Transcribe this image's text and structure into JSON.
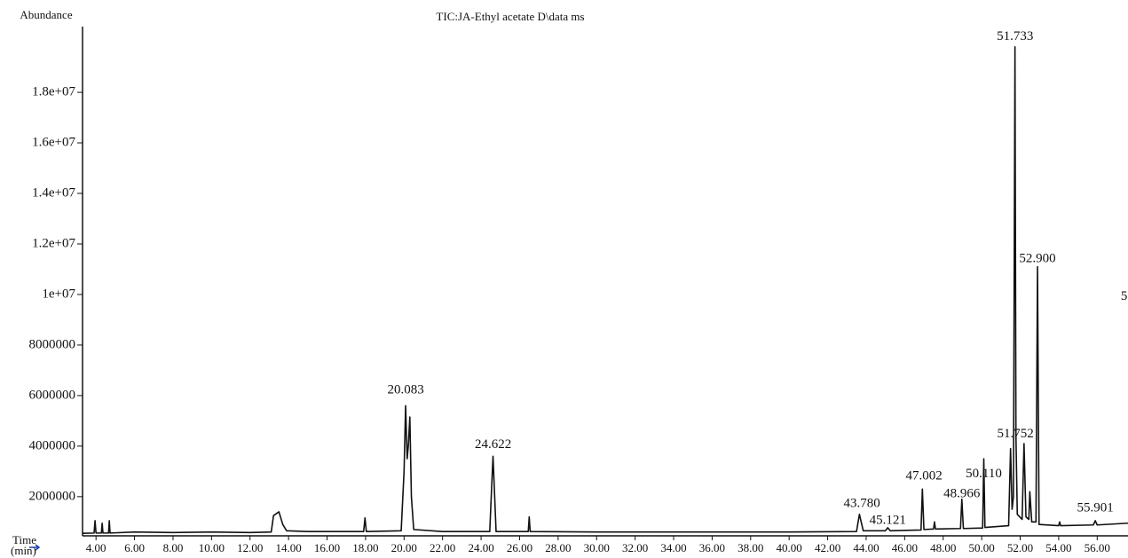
{
  "chart_data": {
    "type": "line",
    "title": "TIC:JA-Ethyl acetate D\\data ms",
    "y_label": "Abundance",
    "x_label": "Time",
    "x_label_unit": "(min)",
    "xlim": [
      3.3,
      57.6
    ],
    "ylim": [
      450000,
      20600000
    ],
    "xticks": [
      {
        "value": 4,
        "label": "4.00"
      },
      {
        "value": 6,
        "label": "6.00"
      },
      {
        "value": 8,
        "label": "8.00"
      },
      {
        "value": 10,
        "label": "10.00"
      },
      {
        "value": 12,
        "label": "12.00"
      },
      {
        "value": 14,
        "label": "14.00"
      },
      {
        "value": 16,
        "label": "16.00"
      },
      {
        "value": 18,
        "label": "18.00"
      },
      {
        "value": 20,
        "label": "20.00"
      },
      {
        "value": 22,
        "label": "22.00"
      },
      {
        "value": 24,
        "label": "24.00"
      },
      {
        "value": 26,
        "label": "26.00"
      },
      {
        "value": 28,
        "label": "28.00"
      },
      {
        "value": 30,
        "label": "30.00"
      },
      {
        "value": 32,
        "label": "32.00"
      },
      {
        "value": 34,
        "label": "34.00"
      },
      {
        "value": 36,
        "label": "36.00"
      },
      {
        "value": 38,
        "label": "38.00"
      },
      {
        "value": 40,
        "label": "40.00"
      },
      {
        "value": 42,
        "label": "42.00"
      },
      {
        "value": 44,
        "label": "44.00"
      },
      {
        "value": 46,
        "label": "46.00"
      },
      {
        "value": 48,
        "label": "48.00"
      },
      {
        "value": 50,
        "label": "50.00"
      },
      {
        "value": 52,
        "label": "52.00"
      },
      {
        "value": 54,
        "label": "54.00"
      },
      {
        "value": 56,
        "label": "56.00"
      }
    ],
    "yticks": [
      2000000,
      4000000,
      6000000,
      8000000,
      {
        "value": 10000000,
        "label": "1e+07"
      },
      {
        "value": 12000000,
        "label": "1.2e+07"
      },
      {
        "value": 14000000,
        "label": "1.4e+07"
      },
      {
        "value": 16000000,
        "label": "1.6e+07"
      },
      {
        "value": 18000000,
        "label": "1.8e+07"
      }
    ],
    "x": [
      3.3,
      3.9,
      3.95,
      4.0,
      4.28,
      4.32,
      4.36,
      4.65,
      4.69,
      4.73,
      6,
      8,
      10,
      12,
      13.1,
      13.22,
      13.5,
      13.7,
      13.9,
      15,
      17.9,
      17.97,
      18.04,
      19.85,
      20.0,
      20.08,
      20.16,
      20.22,
      20.3,
      20.38,
      20.5,
      22,
      24.45,
      24.55,
      24.62,
      24.69,
      24.78,
      26.45,
      26.5,
      26.55,
      30,
      35,
      40,
      43.5,
      43.65,
      43.85,
      45.0,
      45.12,
      45.25,
      46.85,
      46.92,
      47.0,
      47.5,
      47.55,
      47.6,
      48.9,
      48.97,
      49.05,
      50.05,
      50.11,
      50.17,
      51.4,
      51.5,
      51.58,
      51.65,
      51.73,
      51.78,
      51.85,
      52.1,
      52.2,
      52.3,
      52.45,
      52.5,
      52.6,
      52.82,
      52.9,
      52.98,
      54,
      54.05,
      54.1,
      55.8,
      55.9,
      56.0,
      57.6
    ],
    "series": [
      {
        "color": "#111111",
        "values": [
          550000,
          560000,
          1050000,
          560000,
          560000,
          950000,
          560000,
          560000,
          1050000,
          560000,
          600000,
          580000,
          600000,
          580000,
          600000,
          1250000,
          1400000,
          900000,
          650000,
          620000,
          620000,
          1160000,
          620000,
          650000,
          3000000,
          5600000,
          3500000,
          4000000,
          5150000,
          2000000,
          700000,
          620000,
          620000,
          2400000,
          3600000,
          2300000,
          620000,
          620000,
          1200000,
          620000,
          600000,
          600000,
          600000,
          620000,
          1300000,
          650000,
          650000,
          770000,
          650000,
          680000,
          2300000,
          700000,
          720000,
          1000000,
          720000,
          740000,
          1900000,
          740000,
          760000,
          3500000,
          780000,
          850000,
          3900000,
          1500000,
          2000000,
          19800000,
          4400000,
          1300000,
          1100000,
          4100000,
          1200000,
          1100000,
          2200000,
          1000000,
          1000000,
          11100000,
          900000,
          850000,
          1000000,
          850000,
          880000,
          1050000,
          880000,
          950000
        ]
      }
    ],
    "annotations": [
      {
        "x": 20.083,
        "y": 6200000,
        "label": "20.083"
      },
      {
        "x": 24.622,
        "y": 4040000,
        "label": "24.622"
      },
      {
        "x": 43.78,
        "y": 1720000,
        "label": "43.780"
      },
      {
        "x": 45.121,
        "y": 1050000,
        "label": "45.121"
      },
      {
        "x": 47.002,
        "y": 2800000,
        "label": "47.002"
      },
      {
        "x": 48.966,
        "y": 2100000,
        "label": "48.966"
      },
      {
        "x": 50.11,
        "y": 2880000,
        "label": "50.110"
      },
      {
        "x": 51.752,
        "y": 4460000,
        "label": "51.752"
      },
      {
        "x": 51.733,
        "y": 20200000,
        "label": "51.733"
      },
      {
        "x": 52.9,
        "y": 11400000,
        "label": "52.900"
      },
      {
        "x": 55.901,
        "y": 1540000,
        "label": "55.901"
      },
      {
        "x": 57.4,
        "y": 9900000,
        "label": "5"
      }
    ]
  }
}
